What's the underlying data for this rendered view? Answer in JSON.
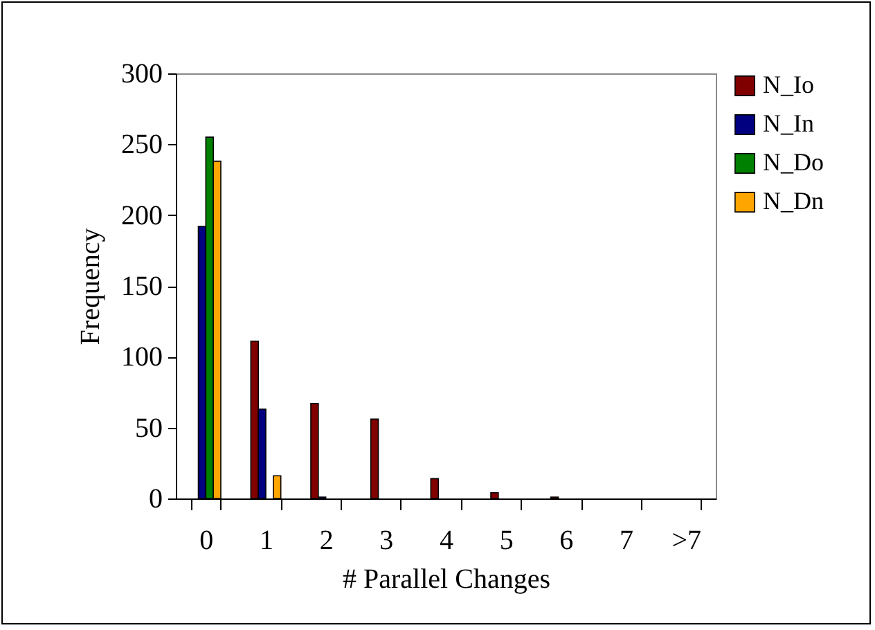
{
  "chart_data": {
    "type": "bar",
    "xlabel": "# Parallel Changes",
    "ylabel": "Frequency",
    "categories": [
      "0",
      "1",
      "2",
      "3",
      "4",
      "5",
      "6",
      "7",
      ">7"
    ],
    "series": [
      {
        "name": "N_Io",
        "color": "#800000",
        "values": [
          0,
          111,
          67,
          56,
          14,
          4,
          1,
          0,
          0
        ]
      },
      {
        "name": "N_In",
        "color": "#000080",
        "values": [
          192,
          63,
          1,
          0,
          0,
          0,
          0,
          0,
          0
        ]
      },
      {
        "name": "N_Do",
        "color": "#008000",
        "values": [
          255,
          0,
          0,
          0,
          0,
          0,
          0,
          0,
          0
        ]
      },
      {
        "name": "N_Dn",
        "color": "#ffa500",
        "values": [
          238,
          16,
          0,
          0,
          0,
          0,
          0,
          0,
          0
        ]
      }
    ],
    "ylim": [
      0,
      300
    ],
    "yticks": [
      0,
      50,
      100,
      150,
      200,
      250,
      300
    ],
    "grid": false,
    "legend": "right"
  }
}
